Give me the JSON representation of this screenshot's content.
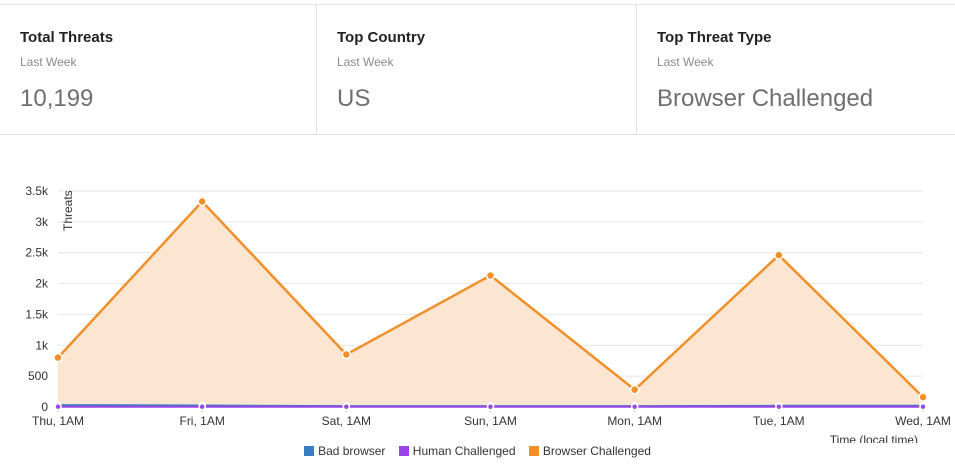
{
  "stats": [
    {
      "title": "Total Threats",
      "subtitle": "Last Week",
      "value": "10,199"
    },
    {
      "title": "Top Country",
      "subtitle": "Last Week",
      "value": "US"
    },
    {
      "title": "Top Threat Type",
      "subtitle": "Last Week",
      "value": "Browser Challenged"
    }
  ],
  "chart_data": {
    "type": "area",
    "ylabel": "Threats",
    "xlabel": "Time (local time)",
    "categories": [
      "Thu, 1AM",
      "Fri, 1AM",
      "Sat, 1AM",
      "Sun, 1AM",
      "Mon, 1AM",
      "Tue, 1AM",
      "Wed, 1AM"
    ],
    "ylim": [
      0,
      3500
    ],
    "yticks": [
      0,
      500,
      1000,
      1500,
      2000,
      2500,
      3000,
      3500
    ],
    "ytick_labels": [
      "0",
      "500",
      "1k",
      "1.5k",
      "2k",
      "2.5k",
      "3k",
      "3.5k"
    ],
    "grid": true,
    "legend_position": "bottom",
    "series": [
      {
        "name": "Bad browser",
        "color": "#3a7cc4",
        "values": [
          30,
          25,
          15,
          15,
          15,
          20,
          20
        ]
      },
      {
        "name": "Human Challenged",
        "color": "#9b45e8",
        "values": [
          5,
          5,
          5,
          5,
          5,
          5,
          5
        ]
      },
      {
        "name": "Browser Challenged",
        "color": "#f0902b",
        "fill": "#fce6d1",
        "values": [
          800,
          3330,
          850,
          2130,
          280,
          2460,
          160
        ]
      }
    ]
  }
}
